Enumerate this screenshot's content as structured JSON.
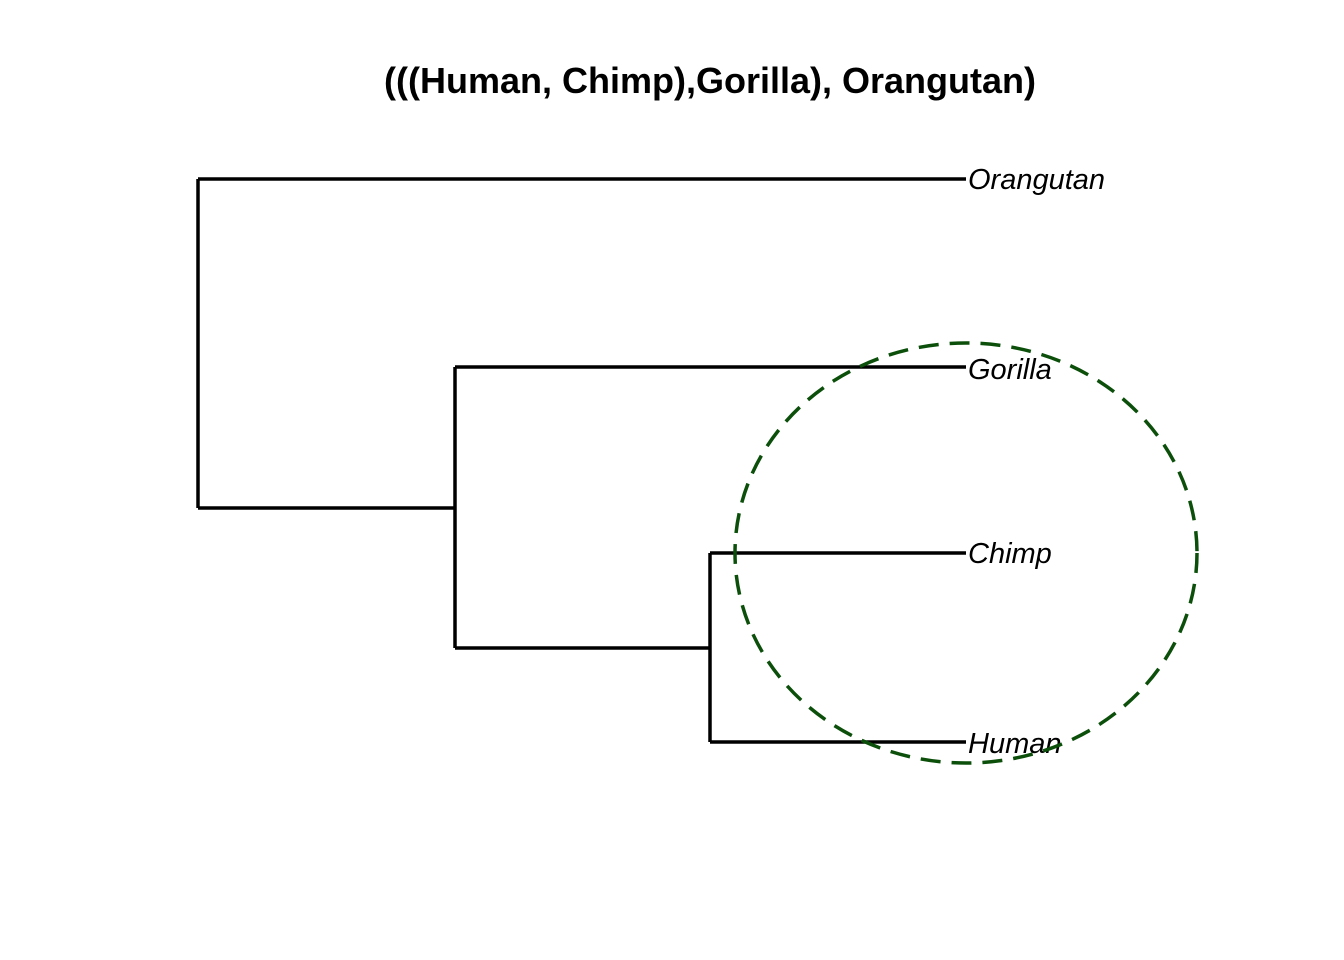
{
  "title": "(((Human, Chimp),Gorilla), Orangutan)",
  "newick": "(((Human, Chimp),Gorilla), Orangutan)",
  "tips": [
    {
      "id": "orangutan",
      "label": "Orangutan"
    },
    {
      "id": "gorilla",
      "label": "Gorilla"
    },
    {
      "id": "chimp",
      "label": "Chimp"
    },
    {
      "id": "human",
      "label": "Human"
    }
  ],
  "clades": [
    {
      "id": "root",
      "children": [
        "orangutan",
        "hcg"
      ]
    },
    {
      "id": "hcg",
      "children": [
        "gorilla",
        "hc"
      ]
    },
    {
      "id": "hc",
      "children": [
        "chimp",
        "human"
      ]
    }
  ],
  "highlight": {
    "encloses": [
      "gorilla",
      "chimp",
      "human"
    ],
    "style": "dashed",
    "color": "#0b4f0b"
  }
}
